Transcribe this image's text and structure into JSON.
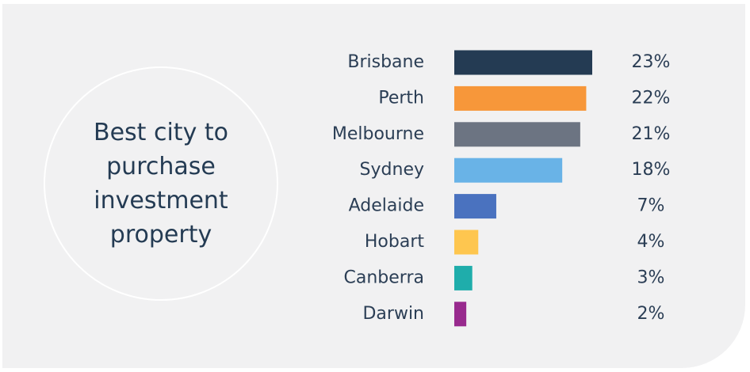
{
  "chart_data": {
    "type": "bar",
    "orientation": "horizontal",
    "title": "Best city to purchase investment property",
    "categories": [
      "Brisbane",
      "Perth",
      "Melbourne",
      "Sydney",
      "Adelaide",
      "Hobart",
      "Canberra",
      "Darwin"
    ],
    "values": [
      23,
      22,
      21,
      18,
      7,
      4,
      3,
      2
    ],
    "value_labels": [
      "23%",
      "22%",
      "21%",
      "18%",
      "7%",
      "4%",
      "3%",
      "2%"
    ],
    "colors": [
      "#243b53",
      "#f7973a",
      "#6c7482",
      "#69b3e7",
      "#4a72bf",
      "#fec64f",
      "#1fadab",
      "#982a8e"
    ]
  }
}
